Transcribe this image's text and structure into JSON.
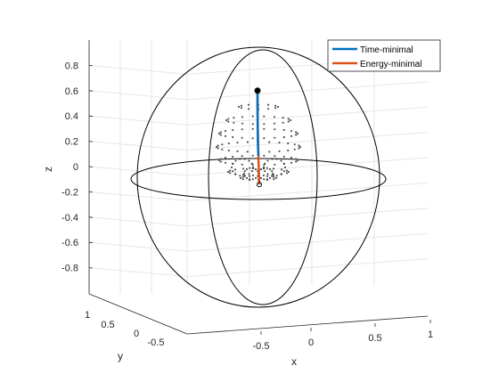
{
  "chart_data": {
    "type": "scatter",
    "view": "3d",
    "grid": true,
    "xlabel": "x",
    "ylabel": "y",
    "zlabel": "z",
    "xticks": [
      "-0.5",
      "0",
      "0.5",
      "1"
    ],
    "yticks": [
      "1",
      "0.5",
      "0",
      "-0.5"
    ],
    "zticks": [
      "0.8",
      "0.6",
      "0.4",
      "0.2",
      "0",
      "-0.2",
      "-0.4",
      "-0.6",
      "-0.8"
    ],
    "xlim": [
      -1,
      1
    ],
    "ylim": [
      -1,
      1
    ],
    "zlim": [
      -1,
      1
    ],
    "legend_position": "top-right",
    "colors": {
      "time": "#0072BD",
      "energy": "#D95319",
      "sphere": "#000000",
      "dots": "#555555",
      "grid": "#e6e6e6"
    },
    "series": [
      {
        "name": "Time-minimal",
        "color": "#0072BD"
      },
      {
        "name": "Energy-minimal",
        "color": "#D95319"
      }
    ],
    "start_point": {
      "z": 0.6
    },
    "end_point": {
      "z": -0.1
    }
  }
}
